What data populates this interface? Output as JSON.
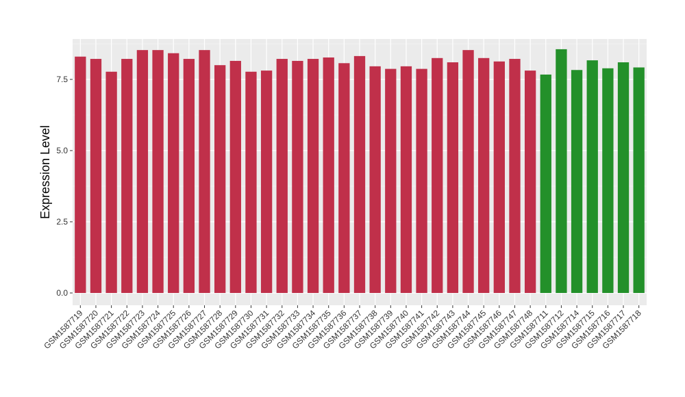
{
  "chart_data": {
    "type": "bar",
    "title": "",
    "xlabel": "",
    "ylabel": "Expression Level",
    "ylim": [
      0,
      8.9
    ],
    "yticks": [
      0.0,
      2.5,
      5.0,
      7.5
    ],
    "ytick_labels": [
      "0.0",
      "2.5",
      "5.0",
      "7.5"
    ],
    "grid": true,
    "legend": "none",
    "colors": {
      "panel": "#EBEBEB",
      "grid_major": "#FFFFFF",
      "grid_minor": "#F5F5F5",
      "group_a": "#C0304A",
      "group_b": "#23902A"
    },
    "categories": [
      "GSM1587719",
      "GSM1587720",
      "GSM1587721",
      "GSM1587722",
      "GSM1587723",
      "GSM1587724",
      "GSM1587725",
      "GSM1587726",
      "GSM1587727",
      "GSM1587728",
      "GSM1587729",
      "GSM1587730",
      "GSM1587731",
      "GSM1587732",
      "GSM1587733",
      "GSM1587734",
      "GSM1587735",
      "GSM1587736",
      "GSM1587737",
      "GSM1587738",
      "GSM1587739",
      "GSM1587740",
      "GSM1587741",
      "GSM1587742",
      "GSM1587743",
      "GSM1587744",
      "GSM1587745",
      "GSM1587746",
      "GSM1587747",
      "GSM1587748",
      "GSM1587711",
      "GSM1587712",
      "GSM1587714",
      "GSM1587715",
      "GSM1587716",
      "GSM1587717",
      "GSM1587718"
    ],
    "values": [
      8.3,
      8.22,
      7.77,
      8.22,
      8.53,
      8.53,
      8.42,
      8.22,
      8.53,
      8.0,
      8.15,
      7.77,
      7.81,
      8.22,
      8.15,
      8.22,
      8.27,
      8.07,
      8.32,
      7.96,
      7.87,
      7.96,
      7.87,
      8.25,
      8.1,
      8.53,
      8.25,
      8.13,
      8.22,
      7.81,
      7.67,
      8.56,
      7.83,
      8.17,
      7.89,
      8.1,
      7.92
    ],
    "groups": [
      "a",
      "a",
      "a",
      "a",
      "a",
      "a",
      "a",
      "a",
      "a",
      "a",
      "a",
      "a",
      "a",
      "a",
      "a",
      "a",
      "a",
      "a",
      "a",
      "a",
      "a",
      "a",
      "a",
      "a",
      "a",
      "a",
      "a",
      "a",
      "a",
      "a",
      "b",
      "b",
      "b",
      "b",
      "b",
      "b",
      "b"
    ]
  }
}
